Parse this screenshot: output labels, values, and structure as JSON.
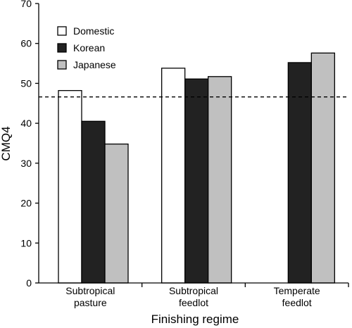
{
  "chart_data": {
    "type": "bar",
    "xlabel": "Finishing regime",
    "ylabel": "CMQ4",
    "ylim": [
      0,
      70
    ],
    "yticks": [
      0,
      10,
      20,
      30,
      40,
      50,
      60,
      70
    ],
    "categories": [
      [
        "Subtropical",
        "pasture"
      ],
      [
        "Subtropical",
        "feedlot"
      ],
      [
        "Temperate",
        "feedlot"
      ]
    ],
    "series": [
      {
        "name": "Domestic",
        "color": "#ffffff",
        "values": [
          48.2,
          53.8,
          null
        ]
      },
      {
        "name": "Korean",
        "color": "#222222",
        "values": [
          40.5,
          51.1,
          55.2
        ]
      },
      {
        "name": "Japanese",
        "color": "#c0c0c0",
        "values": [
          34.8,
          51.7,
          57.6
        ]
      }
    ],
    "reference_line": {
      "value": 46.6,
      "style": "dashed"
    },
    "legend_position": "top-left",
    "grid": false
  }
}
